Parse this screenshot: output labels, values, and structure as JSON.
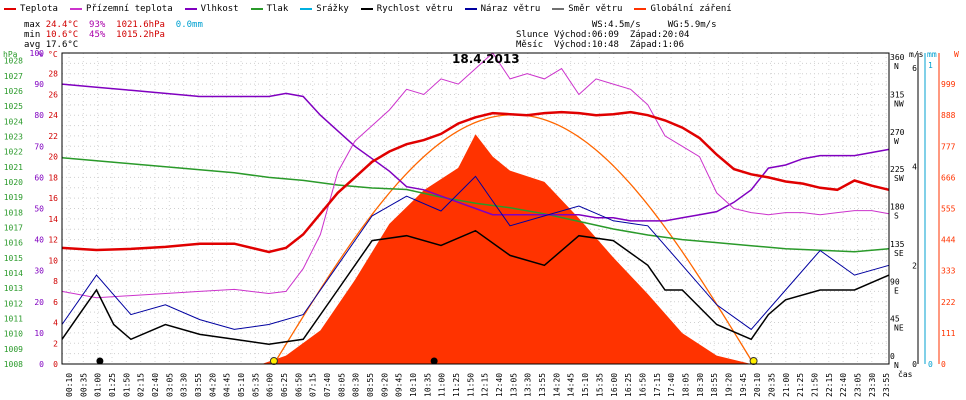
{
  "legend": [
    {
      "label": "Teplota",
      "color": "#e00000"
    },
    {
      "label": "Přízemní teplota",
      "color": "#cc33cc"
    },
    {
      "label": "Vlhkost",
      "color": "#8000c0"
    },
    {
      "label": "Tlak",
      "color": "#2a9a2a"
    },
    {
      "label": "Srážky",
      "color": "#00b0e0"
    },
    {
      "label": "Rychlost větru",
      "color": "#000000"
    },
    {
      "label": "Náraz větru",
      "color": "#0000a0"
    },
    {
      "label": "Směr větru",
      "color": "#707070"
    },
    {
      "label": "Globální záření",
      "color": "#ff3300"
    }
  ],
  "stats": {
    "max_label": "max",
    "max_temp": "24.4°C",
    "max_hum": "93%",
    "max_press": "1021.6hPa",
    "max_rain": "0.0mm",
    "min_label": "min",
    "min_temp": "10.6°C",
    "min_hum": "45%",
    "min_press": "1015.2hPa",
    "avg_label": "avg",
    "avg_temp": "17.6°C"
  },
  "sun": {
    "ws": "WS:4.5m/s",
    "wg": "WG:5.9m/s",
    "sun_label": "Slunce",
    "sun_rise": "Východ:06:09",
    "sun_set": "Západ:20:04",
    "moon_label": "Měsíc",
    "moon_rise": "Východ:10:48",
    "moon_set": "Západ:1:06"
  },
  "title": "18.4.2013",
  "axes": {
    "hpa_label": "hPa",
    "pct_label": "%",
    "c_label": "°C",
    "ms_label": "m/s",
    "mm_label": "mm",
    "w_label": "W",
    "time_label": "čas",
    "hpa_ticks": [
      "1008",
      "1009",
      "1010",
      "1011",
      "1012",
      "1013",
      "1014",
      "1015",
      "1016",
      "1017",
      "1018",
      "1019",
      "1020",
      "1021",
      "1022",
      "1023",
      "1024",
      "1025",
      "1026",
      "1027",
      "1028"
    ],
    "pct_ticks": [
      "0",
      "10",
      "20",
      "30",
      "40",
      "50",
      "60",
      "70",
      "80",
      "90",
      "100"
    ],
    "c_ticks": [
      "0",
      "2",
      "4",
      "6",
      "8",
      "10",
      "12",
      "14",
      "16",
      "18",
      "20",
      "22",
      "24",
      "26",
      "28"
    ],
    "dir_ticks": [
      [
        "0",
        "N"
      ],
      [
        "45",
        "NE"
      ],
      [
        "90",
        "E"
      ],
      [
        "135",
        "SE"
      ],
      [
        "180",
        "S"
      ],
      [
        "225",
        "SW"
      ],
      [
        "270",
        "W"
      ],
      [
        "315",
        "NW"
      ],
      [
        "360",
        "N"
      ]
    ],
    "ms_ticks": [
      "0",
      "2",
      "4",
      "6"
    ],
    "mm_ticks": [
      "0",
      "1"
    ],
    "w_ticks": [
      "0",
      "111",
      "222",
      "333",
      "444",
      "555",
      "666",
      "777",
      "888",
      "999"
    ],
    "time_ticks": [
      "00:10",
      "00:35",
      "01:00",
      "01:25",
      "01:50",
      "02:15",
      "02:40",
      "03:05",
      "03:30",
      "03:55",
      "04:20",
      "04:45",
      "05:10",
      "05:35",
      "06:00",
      "06:25",
      "06:50",
      "07:15",
      "07:40",
      "08:05",
      "08:30",
      "08:55",
      "09:20",
      "09:45",
      "10:10",
      "10:35",
      "11:00",
      "11:25",
      "11:50",
      "12:15",
      "12:40",
      "13:05",
      "13:30",
      "13:55",
      "14:20",
      "14:45",
      "15:10",
      "15:35",
      "16:00",
      "16:25",
      "16:50",
      "17:15",
      "17:40",
      "18:05",
      "18:30",
      "18:55",
      "19:20",
      "19:45",
      "20:10",
      "20:35",
      "21:00",
      "21:25",
      "21:50",
      "22:15",
      "22:40",
      "23:05",
      "23:30",
      "23:55"
    ]
  },
  "chart_data": {
    "type": "line",
    "title": "18.4.2013",
    "x_unit": "hour of day",
    "xlim": [
      0,
      24
    ],
    "series": [
      {
        "name": "Teplota",
        "unit": "°C",
        "points": [
          [
            0,
            11.2
          ],
          [
            1,
            11.0
          ],
          [
            2,
            11.1
          ],
          [
            3,
            11.3
          ],
          [
            4,
            11.6
          ],
          [
            5,
            11.6
          ],
          [
            6,
            10.8
          ],
          [
            6.5,
            11.2
          ],
          [
            7,
            12.5
          ],
          [
            7.5,
            14.5
          ],
          [
            8,
            16.5
          ],
          [
            8.5,
            18.0
          ],
          [
            9,
            19.5
          ],
          [
            9.5,
            20.5
          ],
          [
            10,
            21.2
          ],
          [
            10.5,
            21.6
          ],
          [
            11,
            22.2
          ],
          [
            11.5,
            23.2
          ],
          [
            12,
            23.8
          ],
          [
            12.5,
            24.2
          ],
          [
            13,
            24.1
          ],
          [
            13.5,
            24.0
          ],
          [
            14,
            24.2
          ],
          [
            14.5,
            24.3
          ],
          [
            15,
            24.2
          ],
          [
            15.5,
            24.0
          ],
          [
            16,
            24.1
          ],
          [
            16.5,
            24.3
          ],
          [
            17,
            24.0
          ],
          [
            17.5,
            23.5
          ],
          [
            18,
            22.8
          ],
          [
            18.5,
            21.8
          ],
          [
            19,
            20.2
          ],
          [
            19.5,
            18.8
          ],
          [
            20,
            18.3
          ],
          [
            20.5,
            18.0
          ],
          [
            21,
            17.6
          ],
          [
            21.5,
            17.4
          ],
          [
            22,
            17.0
          ],
          [
            22.5,
            16.8
          ],
          [
            23,
            17.7
          ],
          [
            23.5,
            17.2
          ],
          [
            24,
            16.8
          ]
        ]
      },
      {
        "name": "Přízemní teplota",
        "unit": "°C",
        "points": [
          [
            0,
            7.0
          ],
          [
            1,
            6.4
          ],
          [
            2,
            6.6
          ],
          [
            3,
            6.8
          ],
          [
            4,
            7.0
          ],
          [
            5,
            7.2
          ],
          [
            6,
            6.8
          ],
          [
            6.5,
            7.0
          ],
          [
            7,
            9.2
          ],
          [
            7.5,
            12.5
          ],
          [
            8,
            18.5
          ],
          [
            8.5,
            21.5
          ],
          [
            9,
            23.0
          ],
          [
            9.5,
            24.5
          ],
          [
            10,
            26.5
          ],
          [
            10.5,
            26.0
          ],
          [
            11,
            27.5
          ],
          [
            11.5,
            27.0
          ],
          [
            12,
            28.5
          ],
          [
            12.5,
            30.0
          ],
          [
            13,
            27.5
          ],
          [
            13.5,
            28.0
          ],
          [
            14,
            27.5
          ],
          [
            14.5,
            28.5
          ],
          [
            15,
            26.0
          ],
          [
            15.5,
            27.5
          ],
          [
            16,
            27.0
          ],
          [
            16.5,
            26.5
          ],
          [
            17,
            25.0
          ],
          [
            17.5,
            22.0
          ],
          [
            18,
            21.0
          ],
          [
            18.5,
            20.0
          ],
          [
            19,
            16.5
          ],
          [
            19.5,
            15.0
          ],
          [
            20,
            14.6
          ],
          [
            20.5,
            14.4
          ],
          [
            21,
            14.6
          ],
          [
            21.5,
            14.6
          ],
          [
            22,
            14.4
          ],
          [
            22.5,
            14.6
          ],
          [
            23,
            14.8
          ],
          [
            23.5,
            14.8
          ],
          [
            24,
            14.5
          ]
        ]
      },
      {
        "name": "Vlhkost",
        "unit": "%",
        "points": [
          [
            0,
            90
          ],
          [
            1,
            89
          ],
          [
            2,
            88
          ],
          [
            3,
            87
          ],
          [
            4,
            86
          ],
          [
            5,
            86
          ],
          [
            6,
            86
          ],
          [
            6.5,
            87
          ],
          [
            7,
            86
          ],
          [
            7.5,
            80
          ],
          [
            8,
            75
          ],
          [
            8.5,
            70
          ],
          [
            9,
            66
          ],
          [
            9.5,
            62
          ],
          [
            10,
            57
          ],
          [
            10.5,
            56
          ],
          [
            11,
            54
          ],
          [
            11.5,
            52
          ],
          [
            12,
            50
          ],
          [
            12.5,
            48
          ],
          [
            13,
            48
          ],
          [
            13.5,
            48
          ],
          [
            14,
            48
          ],
          [
            14.5,
            48
          ],
          [
            15,
            48
          ],
          [
            15.5,
            47
          ],
          [
            16,
            47
          ],
          [
            16.5,
            46
          ],
          [
            17,
            46
          ],
          [
            17.5,
            46
          ],
          [
            18,
            47
          ],
          [
            18.5,
            48
          ],
          [
            19,
            49
          ],
          [
            19.5,
            52
          ],
          [
            20,
            56
          ],
          [
            20.5,
            63
          ],
          [
            21,
            64
          ],
          [
            21.5,
            66
          ],
          [
            22,
            67
          ],
          [
            22.5,
            67
          ],
          [
            23,
            67
          ],
          [
            23.5,
            68
          ],
          [
            24,
            69
          ]
        ]
      },
      {
        "name": "Tlak",
        "unit": "hPa",
        "points": [
          [
            0,
            1021.6
          ],
          [
            1,
            1021.4
          ],
          [
            2,
            1021.2
          ],
          [
            3,
            1021.0
          ],
          [
            4,
            1020.8
          ],
          [
            5,
            1020.6
          ],
          [
            6,
            1020.3
          ],
          [
            7,
            1020.1
          ],
          [
            8,
            1019.8
          ],
          [
            9,
            1019.6
          ],
          [
            10,
            1019.5
          ],
          [
            11,
            1019.0
          ],
          [
            12,
            1018.6
          ],
          [
            13,
            1018.3
          ],
          [
            14,
            1017.9
          ],
          [
            15,
            1017.4
          ],
          [
            16,
            1016.9
          ],
          [
            17,
            1016.5
          ],
          [
            18,
            1016.2
          ],
          [
            19,
            1016.0
          ],
          [
            20,
            1015.8
          ],
          [
            21,
            1015.6
          ],
          [
            22,
            1015.5
          ],
          [
            23,
            1015.4
          ],
          [
            24,
            1015.6
          ]
        ]
      },
      {
        "name": "Rychlost větru",
        "unit": "m/s",
        "points": [
          [
            0,
            0.5
          ],
          [
            0.5,
            1
          ],
          [
            1,
            1.5
          ],
          [
            1.5,
            0.8
          ],
          [
            2,
            0.5
          ],
          [
            3,
            0.8
          ],
          [
            4,
            0.6
          ],
          [
            5,
            0.5
          ],
          [
            6,
            0.4
          ],
          [
            7,
            0.5
          ],
          [
            8,
            1.5
          ],
          [
            9,
            2.5
          ],
          [
            10,
            2.6
          ],
          [
            11,
            2.4
          ],
          [
            12,
            2.7
          ],
          [
            13,
            2.2
          ],
          [
            14,
            2.0
          ],
          [
            15,
            2.6
          ],
          [
            16,
            2.5
          ],
          [
            17,
            2.0
          ],
          [
            17.5,
            1.5
          ],
          [
            18,
            1.5
          ],
          [
            19,
            0.8
          ],
          [
            20,
            0.5
          ],
          [
            20.5,
            1.0
          ],
          [
            21,
            1.3
          ],
          [
            22,
            1.5
          ],
          [
            23,
            1.5
          ],
          [
            24,
            1.8
          ]
        ]
      },
      {
        "name": "Náraz větru",
        "unit": "m/s",
        "points": [
          [
            0,
            0.8
          ],
          [
            1,
            1.8
          ],
          [
            2,
            1.0
          ],
          [
            3,
            1.2
          ],
          [
            4,
            0.9
          ],
          [
            5,
            0.7
          ],
          [
            6,
            0.8
          ],
          [
            7,
            1.0
          ],
          [
            8,
            2.0
          ],
          [
            9,
            3.0
          ],
          [
            10,
            3.4
          ],
          [
            11,
            3.1
          ],
          [
            12,
            3.8
          ],
          [
            12.5,
            3.3
          ],
          [
            13,
            2.8
          ],
          [
            14,
            3.0
          ],
          [
            15,
            3.2
          ],
          [
            16,
            2.9
          ],
          [
            17,
            2.8
          ],
          [
            18,
            2.0
          ],
          [
            19,
            1.2
          ],
          [
            20,
            0.7
          ],
          [
            21,
            1.5
          ],
          [
            22,
            2.3
          ],
          [
            23,
            1.8
          ],
          [
            24,
            2.0
          ]
        ]
      },
      {
        "name": "Globální záření",
        "unit": "W",
        "points": [
          [
            5.8,
            0
          ],
          [
            6.5,
            30
          ],
          [
            7.5,
            120
          ],
          [
            8.5,
            300
          ],
          [
            9.5,
            500
          ],
          [
            10.5,
            620
          ],
          [
            11.5,
            700
          ],
          [
            12.0,
            820
          ],
          [
            12.5,
            740
          ],
          [
            13,
            690
          ],
          [
            14,
            650
          ],
          [
            15,
            520
          ],
          [
            16,
            380
          ],
          [
            17,
            250
          ],
          [
            18,
            110
          ],
          [
            19,
            30
          ],
          [
            20,
            0
          ]
        ]
      }
    ],
    "srazky_mm": 0.0
  }
}
